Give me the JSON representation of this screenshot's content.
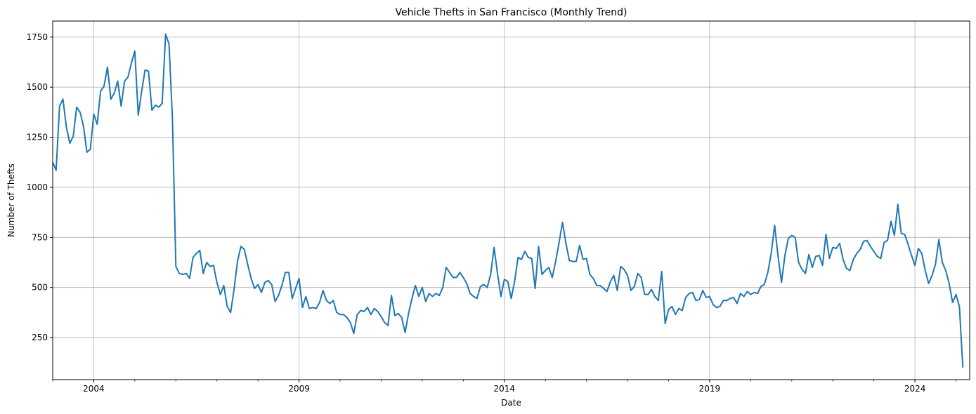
{
  "chart_data": {
    "type": "line",
    "title": "Vehicle Thefts in San Francisco (Monthly Trend)",
    "xlabel": "Date",
    "ylabel": "Number of Thefts",
    "x_start": "2003-01",
    "x_end": "2025-05",
    "xlim": [
      "2003-01",
      "2025-05"
    ],
    "ylim": [
      40,
      1830
    ],
    "x_major_ticks": [
      "2004",
      "2009",
      "2014",
      "2019",
      "2024"
    ],
    "y_ticks": [
      250,
      500,
      750,
      1000,
      1250,
      1500,
      1750
    ],
    "grid": true,
    "line_color": "#1f77b4",
    "series": [
      {
        "values": [
          1125,
          1085,
          1405,
          1440,
          1300,
          1220,
          1255,
          1400,
          1375,
          1305,
          1175,
          1190,
          1365,
          1315,
          1480,
          1505,
          1600,
          1440,
          1470,
          1530,
          1405,
          1530,
          1550,
          1620,
          1680,
          1360,
          1480,
          1585,
          1580,
          1385,
          1410,
          1400,
          1420,
          1765,
          1715,
          1340,
          605,
          570,
          565,
          570,
          545,
          650,
          670,
          685,
          570,
          625,
          605,
          610,
          525,
          465,
          510,
          405,
          375,
          490,
          630,
          705,
          690,
          615,
          545,
          495,
          515,
          475,
          525,
          535,
          515,
          430,
          460,
          510,
          575,
          575,
          445,
          495,
          545,
          400,
          455,
          395,
          400,
          395,
          425,
          485,
          435,
          420,
          435,
          375,
          365,
          365,
          350,
          325,
          270,
          365,
          385,
          380,
          400,
          365,
          395,
          380,
          355,
          325,
          310,
          460,
          360,
          370,
          350,
          275,
          370,
          445,
          510,
          455,
          500,
          430,
          470,
          455,
          470,
          460,
          500,
          600,
          575,
          550,
          550,
          575,
          550,
          520,
          470,
          455,
          445,
          505,
          515,
          500,
          565,
          700,
          570,
          455,
          540,
          530,
          445,
          530,
          650,
          640,
          680,
          650,
          645,
          495,
          705,
          565,
          585,
          600,
          550,
          630,
          725,
          825,
          720,
          635,
          630,
          630,
          710,
          640,
          645,
          565,
          545,
          510,
          510,
          495,
          480,
          530,
          560,
          485,
          605,
          590,
          560,
          485,
          505,
          570,
          550,
          465,
          465,
          490,
          455,
          435,
          580,
          320,
          390,
          405,
          365,
          395,
          385,
          450,
          470,
          475,
          435,
          440,
          485,
          450,
          455,
          415,
          400,
          405,
          435,
          435,
          445,
          450,
          420,
          470,
          455,
          480,
          465,
          475,
          470,
          505,
          515,
          575,
          670,
          810,
          655,
          525,
          660,
          745,
          760,
          750,
          625,
          590,
          570,
          665,
          600,
          655,
          660,
          610,
          765,
          645,
          700,
          695,
          720,
          640,
          595,
          585,
          640,
          670,
          690,
          730,
          735,
          705,
          680,
          655,
          645,
          725,
          735,
          830,
          760,
          915,
          770,
          765,
          715,
          660,
          610,
          695,
          670,
          585,
          520,
          560,
          615,
          740,
          625,
          585,
          520,
          425,
          465,
          405,
          100
        ]
      }
    ]
  }
}
